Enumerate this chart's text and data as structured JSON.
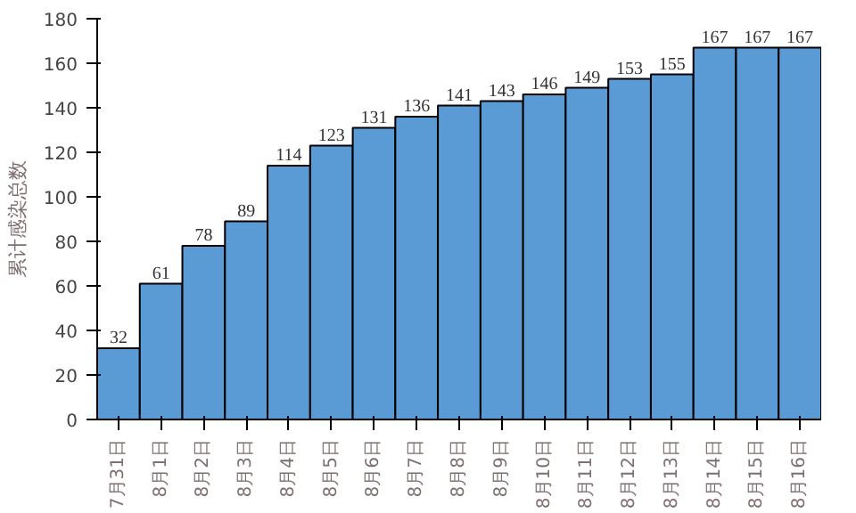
{
  "chart_data": {
    "type": "bar",
    "ylabel": "累计感染总数",
    "categories": [
      "7月31日",
      "8月1日",
      "8月2日",
      "8月3日",
      "8月4日",
      "8月5日",
      "8月6日",
      "8月7日",
      "8月8日",
      "8月9日",
      "8月10日",
      "8月11日",
      "8月12日",
      "8月13日",
      "8月14日",
      "8月15日",
      "8月16日"
    ],
    "values": [
      32,
      61,
      78,
      89,
      114,
      123,
      131,
      136,
      141,
      143,
      146,
      149,
      153,
      155,
      167,
      167,
      167
    ],
    "color": "#5b9bd5",
    "ylim": [
      0,
      180
    ],
    "yticks": [
      0,
      20,
      40,
      60,
      80,
      100,
      120,
      140,
      160,
      180
    ],
    "grid": false,
    "data_labels": true
  }
}
